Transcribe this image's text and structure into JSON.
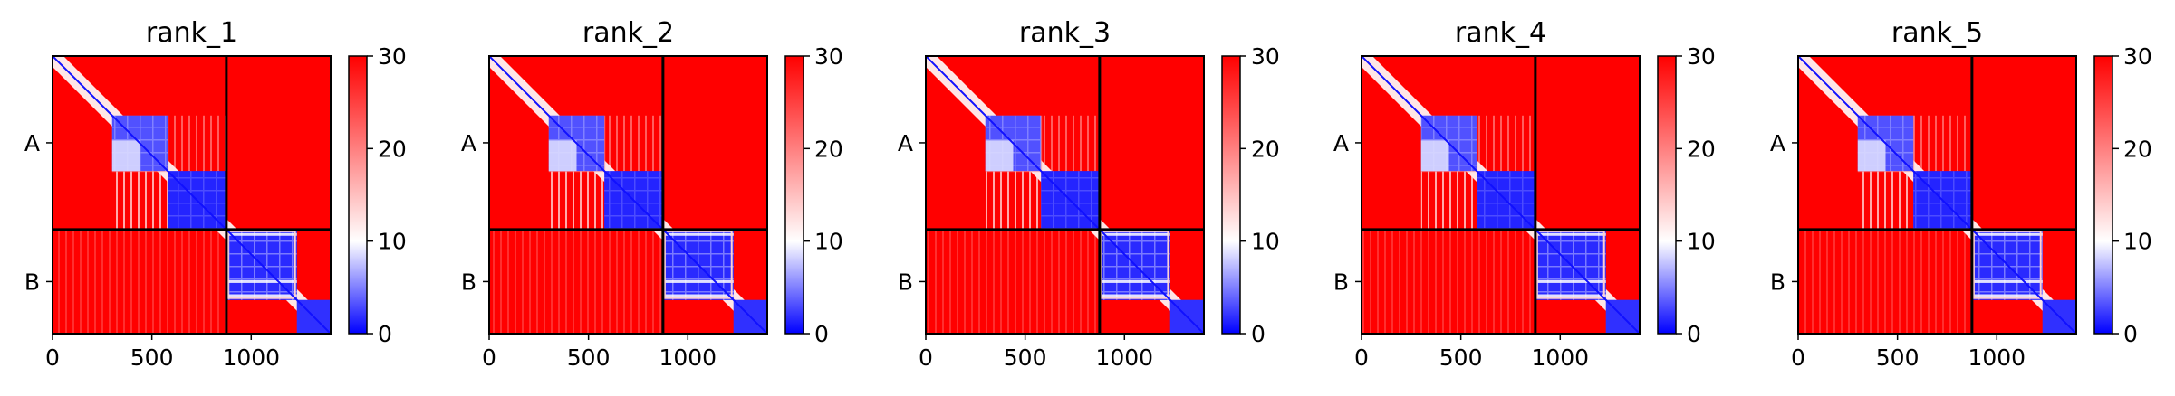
{
  "chart_data": [
    {
      "type": "heatmap",
      "title": "rank_1",
      "ytick_labels": [
        "A",
        "B"
      ],
      "xtick_labels": [
        "0",
        "500",
        "1000"
      ],
      "xticks": [
        0,
        500,
        1000
      ],
      "xlim": [
        0,
        1400
      ],
      "chain_break": 875,
      "colorbar": {
        "min": 0,
        "max": 30,
        "tick_labels": [
          "0",
          "10",
          "20",
          "30"
        ],
        "colors": [
          "#0000ff",
          "#ffffff",
          "#ff0000"
        ]
      },
      "blocks": [
        [
          0,
          300
        ],
        [
          300,
          580
        ],
        [
          580,
          875
        ],
        [
          875,
          1230
        ],
        [
          1230,
          1400
        ]
      ]
    },
    {
      "type": "heatmap",
      "title": "rank_2",
      "ytick_labels": [
        "A",
        "B"
      ],
      "xtick_labels": [
        "0",
        "500",
        "1000"
      ],
      "xticks": [
        0,
        500,
        1000
      ],
      "xlim": [
        0,
        1400
      ],
      "chain_break": 875,
      "colorbar": {
        "min": 0,
        "max": 30,
        "tick_labels": [
          "0",
          "10",
          "20",
          "30"
        ],
        "colors": [
          "#0000ff",
          "#ffffff",
          "#ff0000"
        ]
      },
      "blocks": [
        [
          0,
          300
        ],
        [
          300,
          580
        ],
        [
          580,
          875
        ],
        [
          875,
          1230
        ],
        [
          1230,
          1400
        ]
      ]
    },
    {
      "type": "heatmap",
      "title": "rank_3",
      "ytick_labels": [
        "A",
        "B"
      ],
      "xtick_labels": [
        "0",
        "500",
        "1000"
      ],
      "xticks": [
        0,
        500,
        1000
      ],
      "xlim": [
        0,
        1400
      ],
      "chain_break": 875,
      "colorbar": {
        "min": 0,
        "max": 30,
        "tick_labels": [
          "0",
          "10",
          "20",
          "30"
        ],
        "colors": [
          "#0000ff",
          "#ffffff",
          "#ff0000"
        ]
      },
      "blocks": [
        [
          0,
          300
        ],
        [
          300,
          580
        ],
        [
          580,
          875
        ],
        [
          875,
          1230
        ],
        [
          1230,
          1400
        ]
      ]
    },
    {
      "type": "heatmap",
      "title": "rank_4",
      "ytick_labels": [
        "A",
        "B"
      ],
      "xtick_labels": [
        "0",
        "500",
        "1000"
      ],
      "xticks": [
        0,
        500,
        1000
      ],
      "xlim": [
        0,
        1400
      ],
      "chain_break": 875,
      "colorbar": {
        "min": 0,
        "max": 30,
        "tick_labels": [
          "0",
          "10",
          "20",
          "30"
        ],
        "colors": [
          "#0000ff",
          "#ffffff",
          "#ff0000"
        ]
      },
      "blocks": [
        [
          0,
          300
        ],
        [
          300,
          580
        ],
        [
          580,
          875
        ],
        [
          875,
          1230
        ],
        [
          1230,
          1400
        ]
      ]
    },
    {
      "type": "heatmap",
      "title": "rank_5",
      "ytick_labels": [
        "A",
        "B"
      ],
      "xtick_labels": [
        "0",
        "500",
        "1000"
      ],
      "xticks": [
        0,
        500,
        1000
      ],
      "xlim": [
        0,
        1400
      ],
      "chain_break": 875,
      "colorbar": {
        "min": 0,
        "max": 30,
        "tick_labels": [
          "0",
          "10",
          "20",
          "30"
        ],
        "colors": [
          "#0000ff",
          "#ffffff",
          "#ff0000"
        ]
      },
      "blocks": [
        [
          0,
          300
        ],
        [
          300,
          580
        ],
        [
          580,
          875
        ],
        [
          875,
          1230
        ],
        [
          1230,
          1400
        ]
      ]
    }
  ]
}
